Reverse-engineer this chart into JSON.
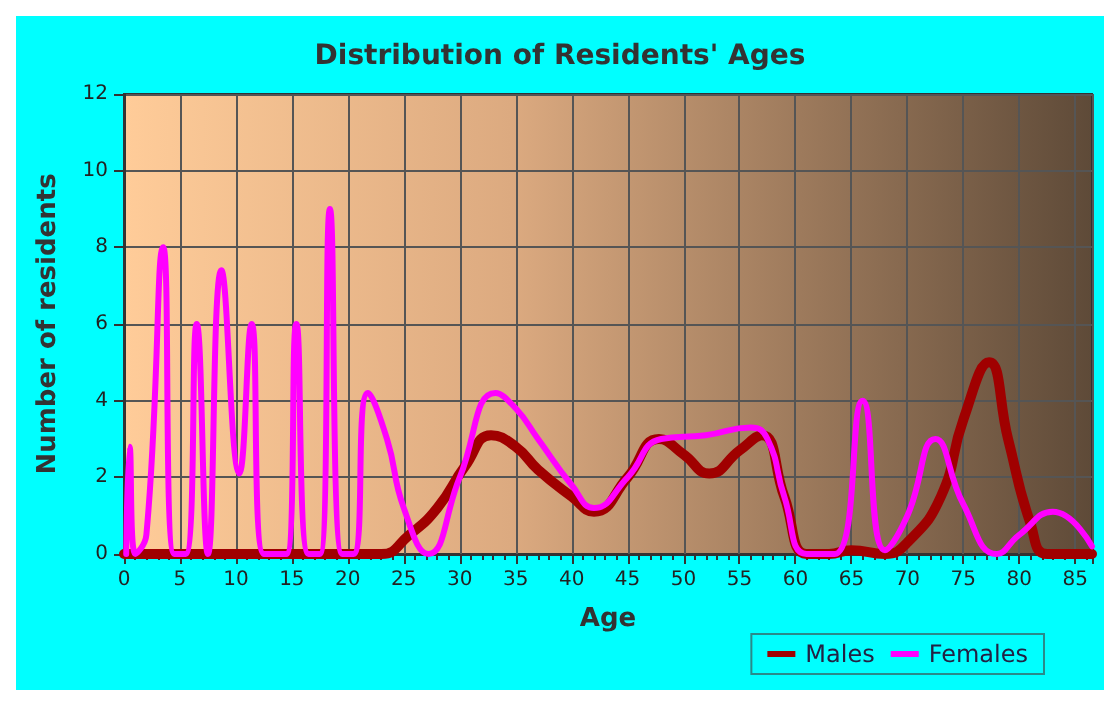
{
  "chart_data": {
    "type": "line",
    "title": "Distribution of Residents' Ages",
    "xlabel": "Age",
    "ylabel": "Number of residents",
    "xlim": [
      0,
      86.5
    ],
    "xticks": [
      0,
      5,
      10,
      15,
      20,
      25,
      30,
      35,
      40,
      45,
      50,
      55,
      60,
      65,
      70,
      75,
      80,
      85
    ],
    "ylim": [
      0,
      12
    ],
    "yticks": [
      0,
      2,
      4,
      6,
      8,
      10,
      12
    ],
    "grid": true,
    "legend": "bottom right",
    "marker": "none",
    "line_style": "solid",
    "series": [
      {
        "name": "Males",
        "color": "#a00000",
        "x": [
          0,
          5,
          10,
          15,
          20,
          23,
          25.5,
          28,
          30.5,
          32.8,
          35,
          37,
          40,
          42,
          45,
          47.8,
          50,
          52.3,
          55,
          57,
          59,
          61,
          63,
          65,
          68,
          70,
          73,
          75,
          77.3,
          79,
          81,
          82.5,
          86.5
        ],
        "values": [
          0,
          0,
          0,
          0,
          0,
          0,
          0.5,
          1.2,
          2.3,
          3.1,
          2.8,
          2.2,
          1.5,
          1.1,
          2,
          3,
          2.6,
          2.1,
          2.7,
          3.1,
          1.5,
          0,
          0,
          0.1,
          0,
          0.3,
          1.5,
          3.5,
          5,
          3,
          0.8,
          0,
          0
        ]
      },
      {
        "name": "Females",
        "color": "#ff00ff",
        "x": [
          0.2,
          0.5,
          1,
          2,
          3.5,
          4.5,
          5.5,
          6.5,
          7.5,
          8.7,
          10.3,
          11.4,
          12.5,
          14.5,
          15.4,
          16.5,
          17.5,
          18.4,
          19.5,
          20.5,
          21.8,
          23.5,
          25,
          27.2,
          30,
          33.2,
          35,
          37,
          40,
          42,
          45,
          48,
          52,
          56,
          57.5,
          59,
          61,
          63.5,
          66,
          68,
          70,
          72.5,
          75,
          78,
          80,
          83,
          86.5
        ],
        "values": [
          0,
          2.8,
          0,
          0.5,
          8,
          0,
          0,
          6,
          0,
          7.4,
          2.1,
          6,
          0,
          0,
          6,
          0,
          0,
          9,
          0,
          0,
          4.2,
          3,
          1.2,
          0,
          2,
          4.2,
          3.8,
          3,
          1.8,
          1.2,
          2,
          3,
          3.1,
          3.3,
          3,
          1.5,
          0,
          0,
          4,
          0.1,
          1,
          3,
          1.3,
          0,
          0.5,
          1.1,
          0.2
        ]
      }
    ]
  }
}
